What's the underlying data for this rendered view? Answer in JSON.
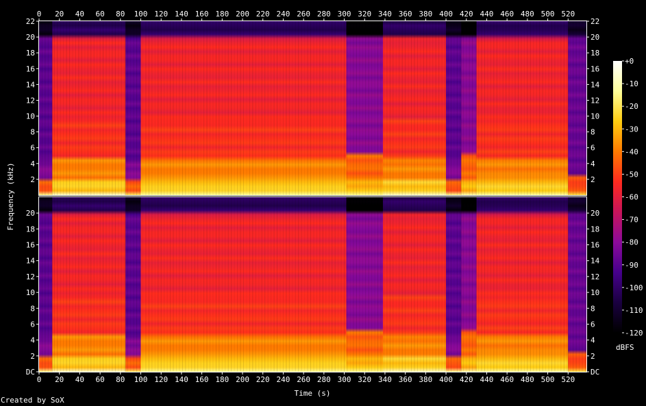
{
  "chart_data": {
    "type": "heatmap",
    "title": "",
    "xlabel": "Time (s)",
    "ylabel": "Frequency (kHz)",
    "xlim": [
      0,
      538
    ],
    "x_ticks": [
      0,
      20,
      40,
      60,
      80,
      100,
      120,
      140,
      160,
      180,
      200,
      220,
      240,
      260,
      280,
      300,
      320,
      340,
      360,
      380,
      400,
      420,
      440,
      460,
      480,
      500,
      520
    ],
    "ylim": [
      0,
      22
    ],
    "channels": [
      {
        "y_ticks": [
          "2",
          "4",
          "6",
          "8",
          "10",
          "12",
          "14",
          "16",
          "18",
          "20",
          "22"
        ]
      },
      {
        "y_ticks": [
          "DC",
          "2",
          "4",
          "6",
          "8",
          "10",
          "12",
          "14",
          "16",
          "18",
          "20"
        ]
      }
    ],
    "colorbar": {
      "label": "dBFS",
      "ticks": [
        "+0",
        "-10",
        "-20",
        "-30",
        "-40",
        "-50",
        "-60",
        "-70",
        "-80",
        "-90",
        "-100",
        "-110",
        "-120"
      ],
      "range": [
        -120,
        0
      ],
      "colors": [
        "#000000",
        "#1a0040",
        "#46008c",
        "#8c0a9a",
        "#c8145a",
        "#ff2a1e",
        "#ff7a00",
        "#ffcc10",
        "#ffff9a",
        "#ffffff"
      ]
    },
    "segments": [
      {
        "start": 0,
        "end": 13,
        "kind": "quiet"
      },
      {
        "start": 13,
        "end": 85,
        "kind": "loud"
      },
      {
        "start": 85,
        "end": 100,
        "kind": "quiet"
      },
      {
        "start": 100,
        "end": 302,
        "kind": "loud"
      },
      {
        "start": 302,
        "end": 338,
        "kind": "mid"
      },
      {
        "start": 338,
        "end": 400,
        "kind": "loud"
      },
      {
        "start": 400,
        "end": 415,
        "kind": "quiet"
      },
      {
        "start": 415,
        "end": 430,
        "kind": "mid"
      },
      {
        "start": 430,
        "end": 520,
        "kind": "loud"
      },
      {
        "start": 520,
        "end": 538,
        "kind": "fade"
      }
    ]
  },
  "footer": {
    "credit": "Created by SoX"
  }
}
